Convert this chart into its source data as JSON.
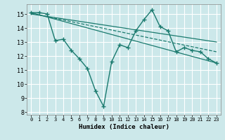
{
  "title": "",
  "xlabel": "Humidex (Indice chaleur)",
  "ylabel": "",
  "background_color": "#cce8ea",
  "grid_color": "#ffffff",
  "line_color": "#1a7a6e",
  "xlim": [
    -0.5,
    23.5
  ],
  "ylim": [
    7.8,
    15.7
  ],
  "yticks": [
    8,
    9,
    10,
    11,
    12,
    13,
    14,
    15
  ],
  "xticks": [
    0,
    1,
    2,
    3,
    4,
    5,
    6,
    7,
    8,
    9,
    10,
    11,
    12,
    13,
    14,
    15,
    16,
    17,
    18,
    19,
    20,
    21,
    22,
    23
  ],
  "main_x": [
    0,
    1,
    2,
    3,
    4,
    5,
    6,
    7,
    8,
    9,
    10,
    11,
    12,
    13,
    14,
    15,
    16,
    17,
    18,
    19,
    20,
    21,
    22,
    23
  ],
  "main_y": [
    15.1,
    15.1,
    15.0,
    13.1,
    13.2,
    12.4,
    11.8,
    11.1,
    9.5,
    8.4,
    11.6,
    12.8,
    12.6,
    13.8,
    14.6,
    15.3,
    14.1,
    13.8,
    12.3,
    12.6,
    12.4,
    12.3,
    11.8,
    11.5
  ],
  "trend1_x": [
    0,
    23
  ],
  "trend1_y": [
    15.1,
    11.5
  ],
  "trend2_x": [
    0,
    23
  ],
  "trend2_y": [
    15.05,
    12.3
  ],
  "trend3_x": [
    0,
    23
  ],
  "trend3_y": [
    15.0,
    13.0
  ],
  "marker": "+",
  "markersize": 4,
  "linewidth_main": 1.0,
  "linewidth_trend": 0.9
}
